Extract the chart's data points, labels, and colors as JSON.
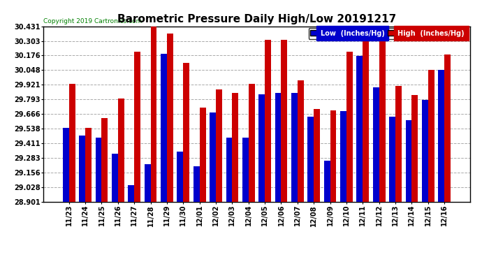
{
  "title": "Barometric Pressure Daily High/Low 20191217",
  "copyright": "Copyright 2019 Cartronics.com",
  "legend_low": "Low  (Inches/Hg)",
  "legend_high": "High  (Inches/Hg)",
  "categories": [
    "11/23",
    "11/24",
    "11/25",
    "11/26",
    "11/27",
    "11/28",
    "11/29",
    "11/30",
    "12/01",
    "12/02",
    "12/03",
    "12/04",
    "12/05",
    "12/06",
    "12/07",
    "12/08",
    "12/09",
    "12/10",
    "12/11",
    "12/12",
    "12/13",
    "12/14",
    "12/15",
    "12/16"
  ],
  "low_values": [
    29.545,
    29.475,
    29.46,
    29.32,
    29.045,
    29.23,
    30.19,
    29.34,
    29.21,
    29.68,
    29.46,
    29.46,
    29.84,
    29.85,
    29.85,
    29.64,
    29.26,
    29.69,
    30.17,
    29.9,
    29.64,
    29.61,
    29.79,
    30.05
  ],
  "high_values": [
    29.93,
    29.545,
    29.63,
    29.8,
    30.21,
    30.43,
    30.37,
    30.11,
    29.72,
    29.88,
    29.85,
    29.93,
    30.31,
    30.31,
    29.96,
    29.71,
    29.7,
    30.21,
    30.43,
    30.39,
    29.91,
    29.83,
    30.05,
    30.185
  ],
  "ylim_min": 28.901,
  "ylim_max": 30.431,
  "yticks": [
    28.901,
    29.028,
    29.156,
    29.283,
    29.411,
    29.538,
    29.666,
    29.793,
    29.921,
    30.048,
    30.176,
    30.303,
    30.431
  ],
  "low_color": "#0000cc",
  "high_color": "#cc0000",
  "bg_color": "#ffffff",
  "plot_bg_color": "#ffffff",
  "grid_color": "#aaaaaa",
  "title_fontsize": 11,
  "bar_width": 0.38,
  "legend_bg_low": "#0000cc",
  "legend_bg_high": "#cc0000"
}
